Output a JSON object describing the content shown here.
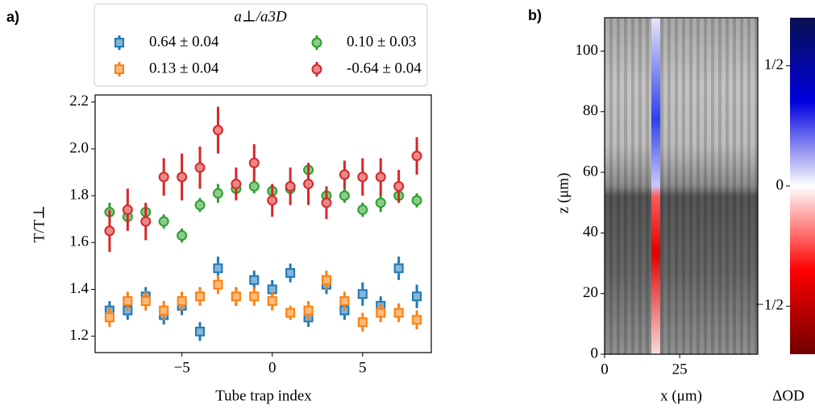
{
  "chart_data": [
    {
      "type": "scatter",
      "label": "a)",
      "ylabel": "T/T⊥",
      "xlabel": "Tube trap index",
      "legend_title": "a⊥/a3D",
      "x": [
        -9,
        -8,
        -7,
        -6,
        -5,
        -4,
        -3,
        -2,
        -1,
        0,
        1,
        2,
        3,
        4,
        5,
        6,
        7,
        8
      ],
      "xlim": [
        -9.8,
        8.8
      ],
      "xticks": [
        {
          "value": -5,
          "label": "−5"
        },
        0,
        5
      ],
      "ylim": [
        1.13,
        2.23
      ],
      "yticks": [
        1.2,
        1.4,
        1.6,
        1.8,
        {
          "value": 2,
          "label": "2.0"
        },
        2.2
      ],
      "series": [
        {
          "name": "0.64 ± 0.04",
          "color": "#1f77b4",
          "marker": "square",
          "values": [
            1.31,
            1.31,
            1.37,
            1.29,
            1.33,
            1.22,
            1.49,
            1.37,
            1.44,
            1.4,
            1.47,
            1.28,
            1.42,
            1.31,
            1.38,
            1.33,
            1.49,
            1.37
          ],
          "errors": [
            0.04,
            0.04,
            0.04,
            0.04,
            0.04,
            0.04,
            0.05,
            0.04,
            0.04,
            0.04,
            0.04,
            0.04,
            0.04,
            0.04,
            0.05,
            0.04,
            0.05,
            0.05
          ]
        },
        {
          "name": "0.13 ± 0.04",
          "color": "#ff7f0e",
          "marker": "square",
          "values": [
            1.28,
            1.35,
            1.35,
            1.31,
            1.35,
            1.37,
            1.42,
            1.37,
            1.37,
            1.35,
            1.3,
            1.31,
            1.44,
            1.35,
            1.26,
            1.3,
            1.3,
            1.27
          ],
          "errors": [
            0.04,
            0.04,
            0.04,
            0.04,
            0.04,
            0.04,
            0.04,
            0.04,
            0.04,
            0.04,
            0.03,
            0.04,
            0.04,
            0.04,
            0.04,
            0.04,
            0.04,
            0.04
          ]
        },
        {
          "name": "0.10 ± 0.03",
          "color": "#2ca02c",
          "marker": "circle",
          "values": [
            1.73,
            1.71,
            1.73,
            1.69,
            1.63,
            1.76,
            1.81,
            1.83,
            1.84,
            1.82,
            1.83,
            1.91,
            1.8,
            1.8,
            1.74,
            1.77,
            1.8,
            1.78
          ],
          "errors": [
            0.04,
            0.03,
            0.03,
            0.03,
            0.03,
            0.03,
            0.04,
            0.03,
            0.03,
            0.03,
            0.03,
            0.03,
            0.03,
            0.03,
            0.03,
            0.04,
            0.03,
            0.03
          ]
        },
        {
          "name": "-0.64 ± 0.04",
          "color": "#d62728",
          "marker": "circle",
          "values": [
            1.65,
            1.74,
            1.69,
            1.88,
            1.88,
            1.92,
            2.08,
            1.85,
            1.94,
            1.78,
            1.84,
            1.85,
            1.77,
            1.89,
            1.88,
            1.88,
            1.84,
            1.97
          ],
          "errors": [
            0.09,
            0.09,
            0.08,
            0.08,
            0.1,
            0.09,
            0.1,
            0.07,
            0.08,
            0.07,
            0.08,
            0.09,
            0.07,
            0.06,
            0.08,
            0.08,
            0.07,
            0.08
          ]
        }
      ]
    },
    {
      "type": "image",
      "label": "b)",
      "ylabel": "z (μm)",
      "xlabel": "x (μm)",
      "xlim": [
        0,
        51
      ],
      "xticks": [
        0,
        25
      ],
      "ylim": [
        0,
        111
      ],
      "yticks": [
        0,
        20,
        40,
        60,
        80,
        100
      ],
      "colorbar": {
        "label": "ΔOD",
        "lim": [
          -0.7,
          0.7
        ],
        "ticks": [
          {
            "value": 0.5,
            "label": "1/2"
          },
          0,
          {
            "value": -0.5,
            "label": "−1/2"
          }
        ]
      }
    }
  ]
}
